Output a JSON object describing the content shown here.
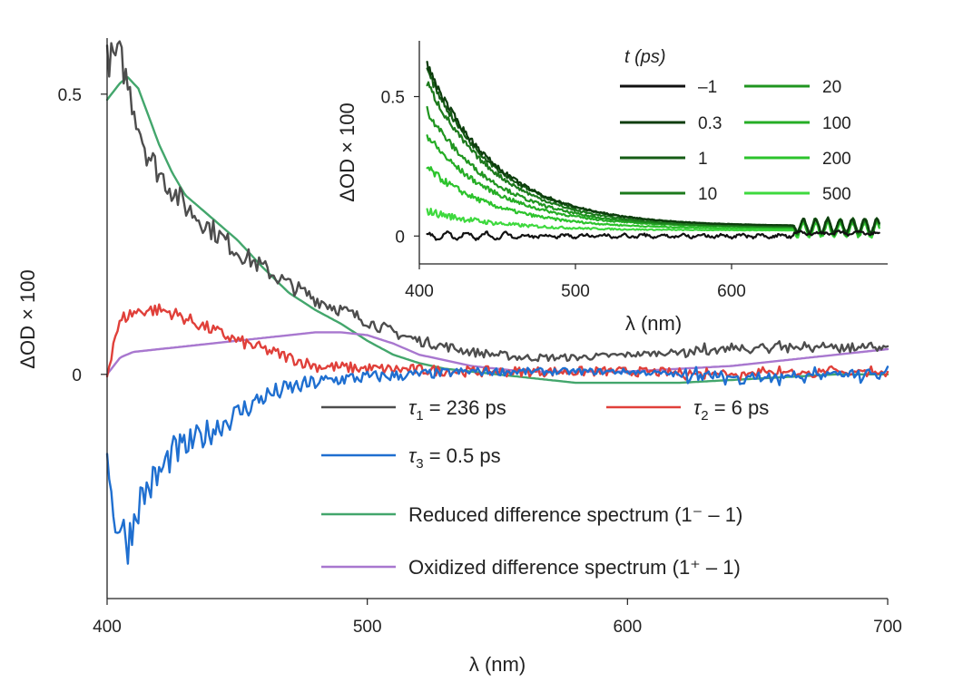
{
  "chart_data": [
    {
      "id": "main",
      "type": "line",
      "title": "",
      "xlabel": "λ (nm)",
      "ylabel": "ΔOD × 100",
      "xlim": [
        400,
        700
      ],
      "ylim": [
        -0.4,
        0.6
      ],
      "xticks": [
        400,
        500,
        600,
        700
      ],
      "xtick_labels": [
        "400",
        "500",
        "600",
        "700"
      ],
      "yticks": [
        0,
        0.5
      ],
      "ytick_labels": [
        "0",
        "0.5"
      ],
      "grid": false,
      "legend_position": "bottom-center",
      "series": [
        {
          "key": "tau1",
          "label_symbol": "τ",
          "label_sub": "1",
          "label_text": " = 236 ps",
          "color": "#4d4d4d",
          "x": [
            400,
            405,
            410,
            415,
            420,
            425,
            430,
            435,
            440,
            450,
            460,
            470,
            480,
            490,
            500,
            510,
            520,
            530,
            540,
            560,
            580,
            600,
            620,
            640,
            660,
            680,
            700
          ],
          "y": [
            0.56,
            0.57,
            0.48,
            0.4,
            0.36,
            0.33,
            0.3,
            0.28,
            0.26,
            0.22,
            0.19,
            0.16,
            0.135,
            0.115,
            0.095,
            0.075,
            0.06,
            0.05,
            0.04,
            0.03,
            0.03,
            0.035,
            0.04,
            0.045,
            0.05,
            0.045,
            0.05
          ]
        },
        {
          "key": "tau2",
          "label_symbol": "τ",
          "label_sub": "2",
          "label_text": " = 6 ps",
          "color": "#e0403a",
          "x": [
            400,
            403,
            406,
            410,
            415,
            420,
            425,
            430,
            440,
            450,
            460,
            470,
            480,
            500,
            520,
            540,
            560,
            580,
            600,
            620,
            640,
            660,
            680,
            700
          ],
          "y": [
            0.0,
            0.07,
            0.1,
            0.11,
            0.115,
            0.115,
            0.11,
            0.1,
            0.08,
            0.06,
            0.045,
            0.03,
            0.015,
            0.01,
            0.008,
            0.005,
            0.005,
            0.005,
            0.005,
            0.003,
            0.0,
            0.005,
            0.005,
            0.005
          ]
        },
        {
          "key": "tau3",
          "label_symbol": "τ",
          "label_sub": "3",
          "label_text": " = 0.5 ps",
          "color": "#1f6fd0",
          "x": [
            400,
            402,
            405,
            408,
            412,
            416,
            420,
            425,
            430,
            440,
            450,
            460,
            470,
            480,
            490,
            500,
            520,
            540,
            560,
            580,
            600,
            620,
            640,
            660,
            680,
            700
          ],
          "y": [
            -0.11,
            -0.25,
            -0.27,
            -0.3,
            -0.23,
            -0.2,
            -0.18,
            -0.14,
            -0.13,
            -0.1,
            -0.07,
            -0.04,
            -0.025,
            -0.015,
            -0.008,
            -0.005,
            0.0,
            0.005,
            0.005,
            0.005,
            0.005,
            0.0,
            -0.005,
            -0.005,
            0.0,
            0.0
          ]
        },
        {
          "key": "reduced",
          "label_text": "Reduced difference spectrum (1⁻ – 1)",
          "color": "#43a66c",
          "x": [
            400,
            405,
            408,
            412,
            416,
            420,
            425,
            430,
            440,
            450,
            460,
            470,
            480,
            490,
            500,
            510,
            520,
            530,
            540,
            560,
            580,
            600,
            620,
            640,
            660,
            680,
            700
          ],
          "y": [
            0.49,
            0.52,
            0.53,
            0.51,
            0.46,
            0.41,
            0.36,
            0.32,
            0.28,
            0.24,
            0.19,
            0.145,
            0.115,
            0.09,
            0.06,
            0.035,
            0.02,
            0.01,
            0.005,
            -0.005,
            -0.015,
            -0.015,
            -0.015,
            -0.01,
            -0.005,
            0.0,
            0.0
          ]
        },
        {
          "key": "oxidized",
          "label_text": "Oxidized difference spectrum (1⁺ – 1)",
          "color": "#a877cf",
          "x": [
            400,
            405,
            410,
            420,
            430,
            440,
            450,
            460,
            470,
            480,
            490,
            500,
            510,
            520,
            540,
            560,
            580,
            600,
            620,
            640,
            660,
            680,
            700
          ],
          "y": [
            0.0,
            0.03,
            0.04,
            0.045,
            0.05,
            0.055,
            0.06,
            0.065,
            0.07,
            0.075,
            0.075,
            0.07,
            0.055,
            0.035,
            0.015,
            0.005,
            0.005,
            0.005,
            0.01,
            0.015,
            0.025,
            0.035,
            0.045
          ]
        }
      ]
    },
    {
      "id": "inset",
      "type": "line",
      "title": "",
      "xlabel": "λ (nm)",
      "ylabel": "ΔOD × 100",
      "xlim": [
        400,
        700
      ],
      "ylim": [
        -0.1,
        0.7
      ],
      "xticks": [
        400,
        500,
        600
      ],
      "xtick_labels": [
        "400",
        "500",
        "600"
      ],
      "yticks": [
        0,
        0.5
      ],
      "ytick_labels": [
        "0",
        "0.5"
      ],
      "grid": false,
      "legend_title": "t (ps)",
      "legend_position": "top-right",
      "series": [
        {
          "name": "–1",
          "color": "#111111",
          "amplitude": 0.0,
          "baseline": 0.0
        },
        {
          "name": "0.3",
          "color": "#0d3d0d",
          "amplitude": 0.58,
          "baseline": 0.035
        },
        {
          "name": "1",
          "color": "#155c15",
          "amplitude": 0.56,
          "baseline": 0.035
        },
        {
          "name": "10",
          "color": "#1c7a1c",
          "amplitude": 0.52,
          "baseline": 0.03
        },
        {
          "name": "20",
          "color": "#209520",
          "amplitude": 0.42,
          "baseline": 0.03
        },
        {
          "name": "100",
          "color": "#25ad25",
          "amplitude": 0.33,
          "baseline": 0.03
        },
        {
          "name": "200",
          "color": "#2cc32c",
          "amplitude": 0.22,
          "baseline": 0.025
        },
        {
          "name": "500",
          "color": "#3ed93e",
          "amplitude": 0.07,
          "baseline": 0.02
        }
      ]
    }
  ]
}
